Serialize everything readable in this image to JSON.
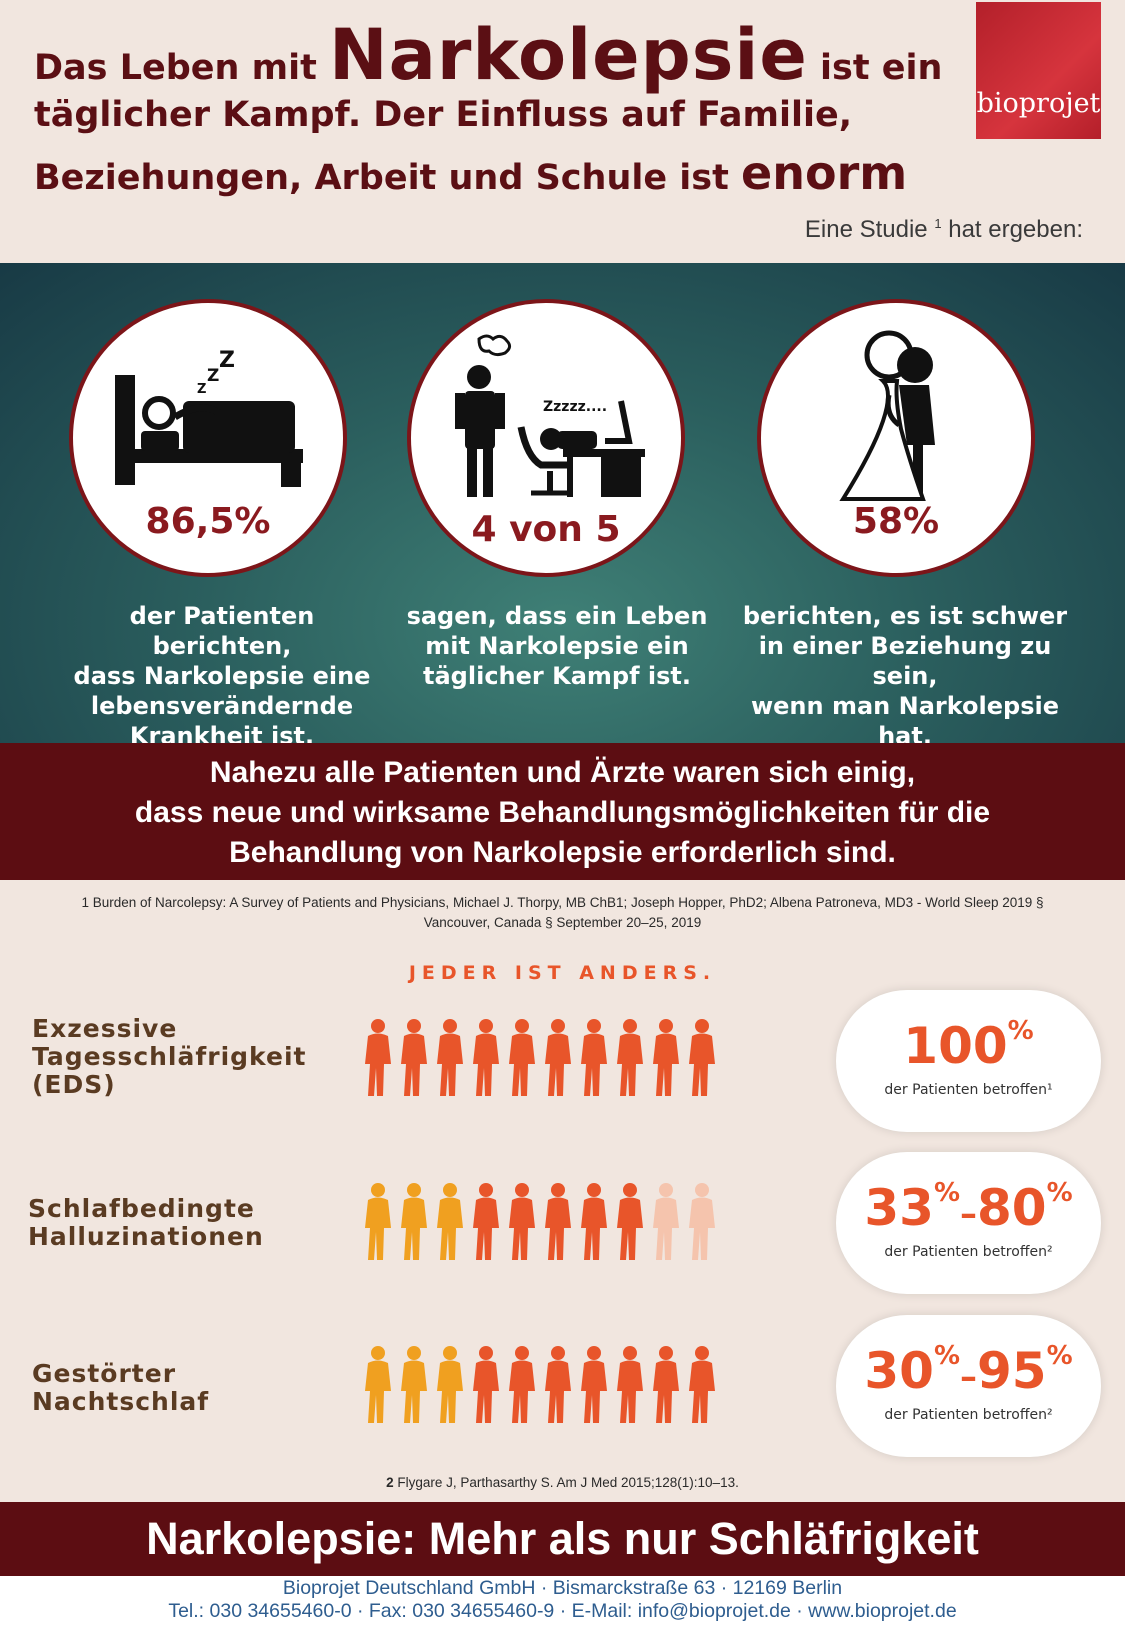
{
  "header": {
    "title_part1": "Das Leben mit ",
    "title_big": "Narkolepsie",
    "title_part2": " ist ein",
    "title_line2": "täglicher Kampf. Der Einfluss auf Familie,",
    "title_line3_prefix": "Beziehungen, Arbeit und Schule ist ",
    "title_line3_big": "enorm",
    "logo_text": "bioprojet",
    "study_prefix": "Eine Studie ",
    "study_sup": "1",
    "study_suffix": " hat ergeben:"
  },
  "stats": [
    {
      "icon": "sleeping-in-bed-icon",
      "value": "86,5%",
      "caption": [
        "der Patienten berichten,",
        "dass Narkolepsie eine",
        "lebensverändernde",
        "Krankheit ist."
      ]
    },
    {
      "icon": "sleeping-at-desk-icon",
      "value": "4 von 5",
      "zzz": "Zzzzz....",
      "caption": [
        "sagen, dass ein Leben",
        "mit Narkolepsie ein",
        "täglicher Kampf ist."
      ]
    },
    {
      "icon": "wedding-couple-icon",
      "value": "58%",
      "caption": [
        "berichten, es ist schwer",
        "in einer Beziehung zu sein,",
        "wenn man Narkolepsie hat."
      ]
    }
  ],
  "banner": [
    "Nahezu alle Patienten und Ärzte waren sich einig,",
    "dass neue und wirksame Behandlungsmöglichkeiten für die",
    "Behandlung von Narkolepsie erforderlich sind."
  ],
  "footnote1": [
    "1 Burden of Narcolepsy: A Survey of Patients and Physicians, Michael J. Thorpy, MB ChB1; Joseph Hopper, PhD2; Albena Patroneva, MD3  - World Sleep 2019 §",
    "Vancouver, Canada § September 20–25, 2019"
  ],
  "jeder": "JEDER IST ANDERS.",
  "symptoms": [
    {
      "label": [
        "Exzessive",
        "Tagesschläfrigkeit",
        "(EDS)"
      ],
      "pct_a": "100",
      "pct_b": "",
      "sub": "der Patienten betroffen¹"
    },
    {
      "label": [
        "Schlafbedingte",
        "Halluzinationen"
      ],
      "pct_a": "33",
      "pct_b": "80",
      "sub": "der Patienten betroffen²"
    },
    {
      "label": [
        "Gestörter",
        "Nachtschlaf"
      ],
      "pct_a": "30",
      "pct_b": "95",
      "sub": "der Patienten betroffen²"
    }
  ],
  "pct_sign": "%",
  "dash": "–",
  "colors": {
    "maroon": "#5c0d12",
    "accent_orange": "#e8552a",
    "orange_light": "#f0a020",
    "faded": "#f5c4ad"
  },
  "footnote2_num": "2",
  "footnote2_text": " Flygare J, Parthasarthy S. Am J Med 2015;128(1):10–13.",
  "bottom_title": "Narkolepsie: Mehr als nur Schläfrigkeit",
  "footer": [
    "Bioprojet Deutschland GmbH · Bismarckstraße 63 · 12169 Berlin",
    "Tel.: 030 34655460-0 · Fax: 030 34655460-9 · E-Mail: info@bioprojet.de · www.bioprojet.de"
  ]
}
